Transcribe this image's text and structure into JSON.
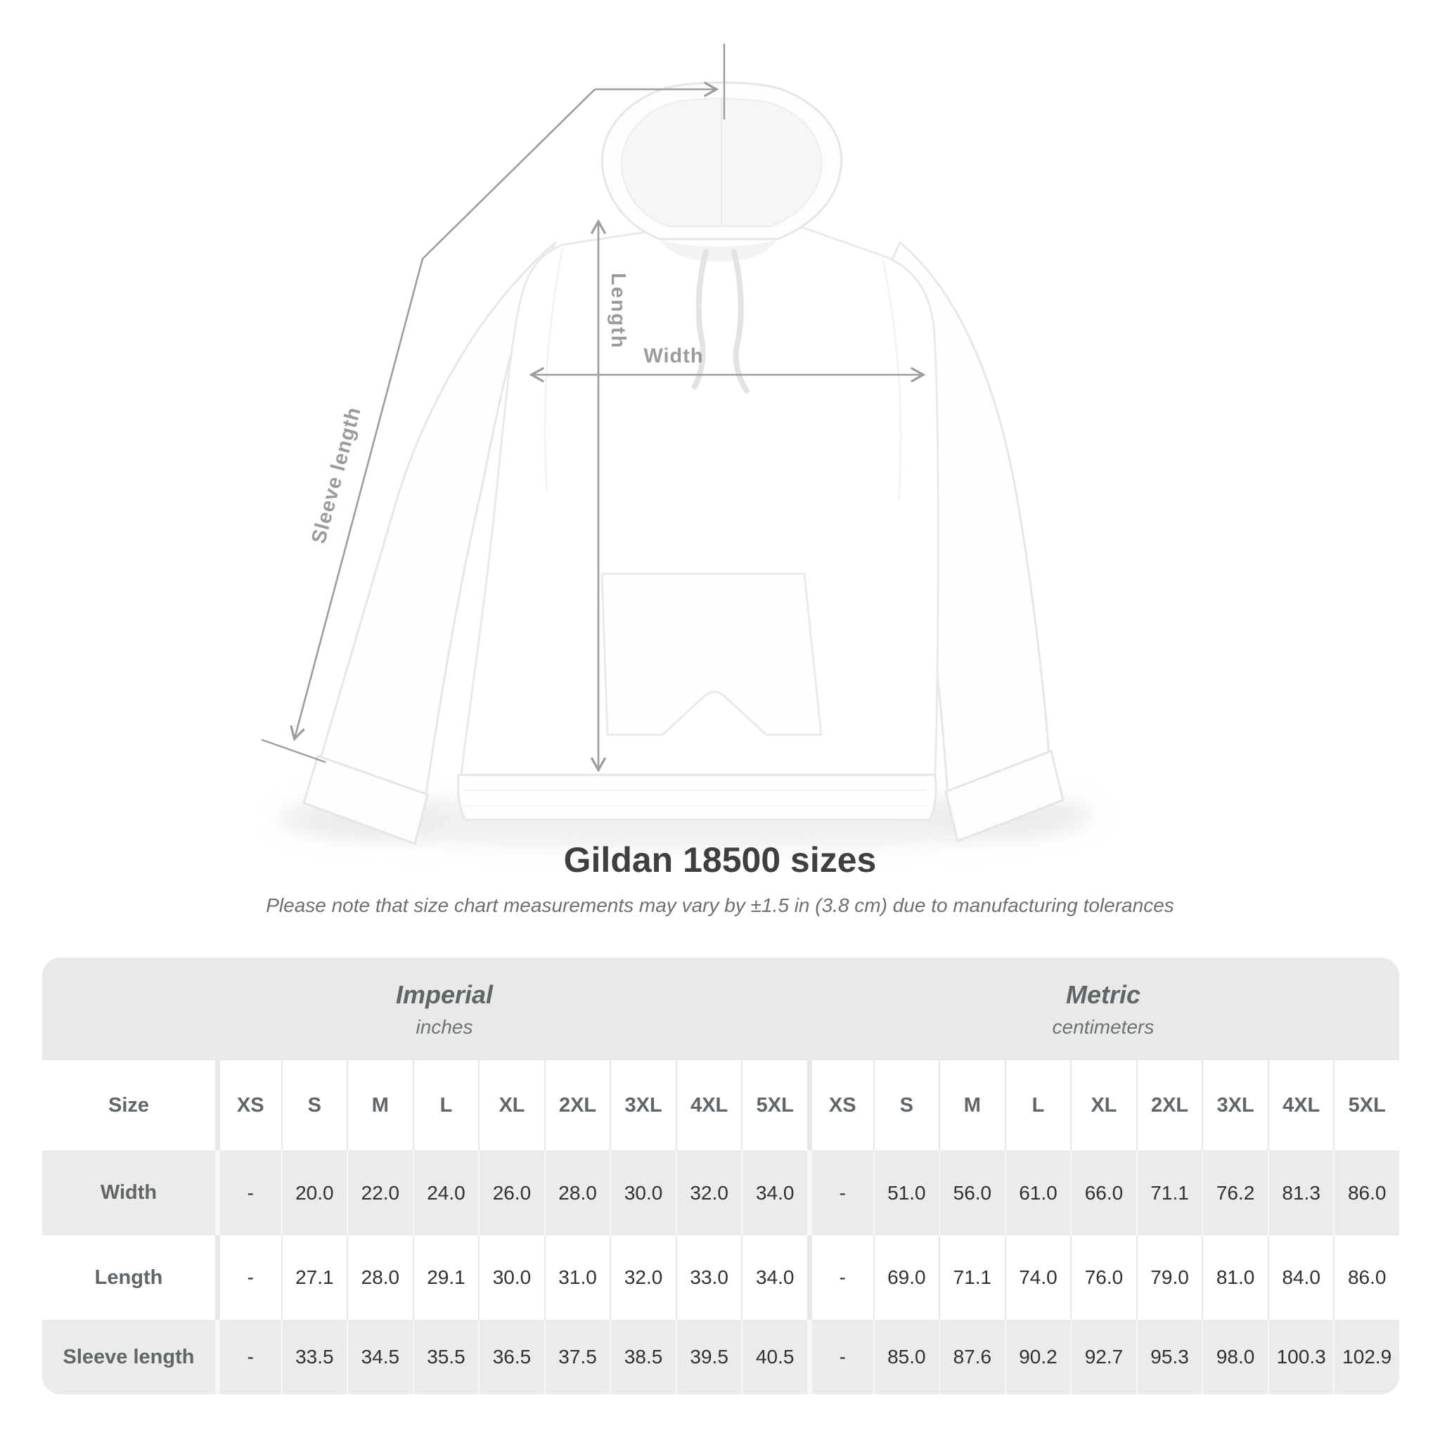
{
  "heading": {
    "title": "Gildan 18500 sizes",
    "subtitle": "Please note that size chart measurements may vary by ±1.5 in (3.8 cm) due to manufacturing tolerances"
  },
  "diagram": {
    "length_label": "Length",
    "width_label": "Width",
    "sleeve_label": "Sleeve length"
  },
  "table": {
    "size_header": "Size",
    "unit_groups": [
      {
        "label": "Imperial",
        "sublabel": "inches"
      },
      {
        "label": "Metric",
        "sublabel": "centimeters"
      }
    ],
    "sizes": [
      "XS",
      "S",
      "M",
      "L",
      "XL",
      "2XL",
      "3XL",
      "4XL",
      "5XL"
    ],
    "rows": [
      {
        "label": "Width",
        "imperial": [
          "-",
          "20.0",
          "22.0",
          "24.0",
          "26.0",
          "28.0",
          "30.0",
          "32.0",
          "34.0"
        ],
        "metric": [
          "-",
          "51.0",
          "56.0",
          "61.0",
          "66.0",
          "71.1",
          "76.2",
          "81.3",
          "86.0"
        ]
      },
      {
        "label": "Length",
        "imperial": [
          "-",
          "27.1",
          "28.0",
          "29.1",
          "30.0",
          "31.0",
          "32.0",
          "33.0",
          "34.0"
        ],
        "metric": [
          "-",
          "69.0",
          "71.1",
          "74.0",
          "76.0",
          "79.0",
          "81.0",
          "84.0",
          "86.0"
        ]
      },
      {
        "label": "Sleeve length",
        "imperial": [
          "-",
          "33.5",
          "34.5",
          "35.5",
          "36.5",
          "37.5",
          "38.5",
          "39.5",
          "40.5"
        ],
        "metric": [
          "-",
          "85.0",
          "87.6",
          "90.2",
          "92.7",
          "95.3",
          "98.0",
          "100.3",
          "102.9"
        ]
      }
    ]
  },
  "colors": {
    "measure_line": "#9b9d9e",
    "measure_label": "#999c9e",
    "band_bg": "#e9e9e8",
    "shade_bg": "#ebebea",
    "header_text": "#5e666a",
    "value_text": "#2f3133",
    "title_text": "#3d3f40",
    "subtitle_text": "#6e6f70"
  }
}
